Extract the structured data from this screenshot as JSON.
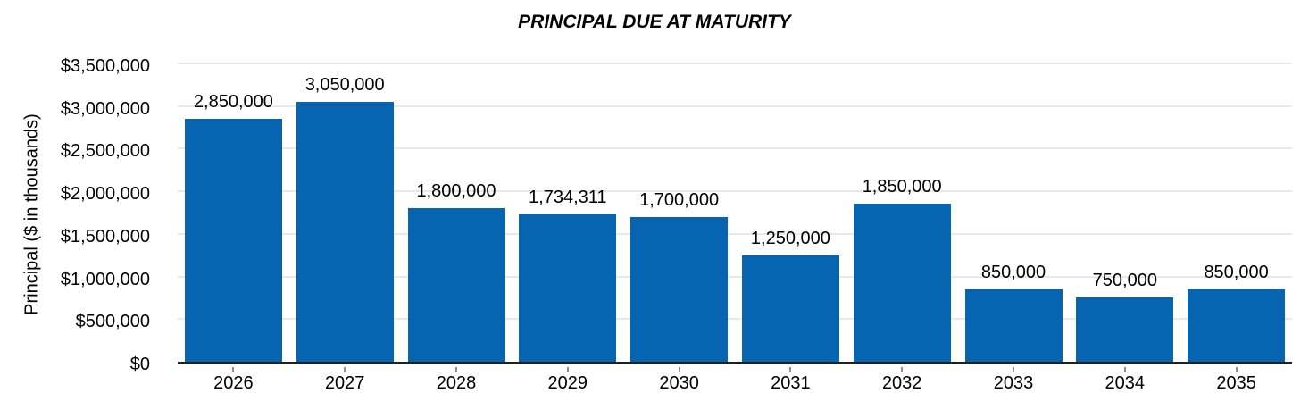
{
  "chart_data": {
    "type": "bar",
    "title": "PRINCIPAL DUE AT MATURITY",
    "categories": [
      "2026",
      "2027",
      "2028",
      "2029",
      "2030",
      "2031",
      "2032",
      "2033",
      "2034",
      "2035"
    ],
    "values": [
      2850000,
      3050000,
      1800000,
      1734311,
      1700000,
      1250000,
      1850000,
      850000,
      750000,
      850000
    ],
    "data_labels": [
      "2,850,000",
      "3,050,000",
      "1,800,000",
      "1,734,311",
      "1,700,000",
      "1,250,000",
      "1,850,000",
      "850,000",
      "750,000",
      "850,000"
    ],
    "xlabel": "",
    "ylabel": "Principal ($ in thousands)",
    "ylim": [
      0,
      3500000
    ],
    "ytick_interval": 500000,
    "y_tick_labels": [
      "$0",
      "$500,000",
      "$1,000,000",
      "$1,500,000",
      "$2,000,000",
      "$2,500,000",
      "$3,000,000",
      "$3,500,000"
    ],
    "grid": true,
    "legend": false,
    "colors": {
      "bar": "#0664B1",
      "gridline": "#E9E9E9",
      "axis_line": "#212121",
      "tick_mark": "#8F8F8F",
      "text": "#000000"
    }
  }
}
